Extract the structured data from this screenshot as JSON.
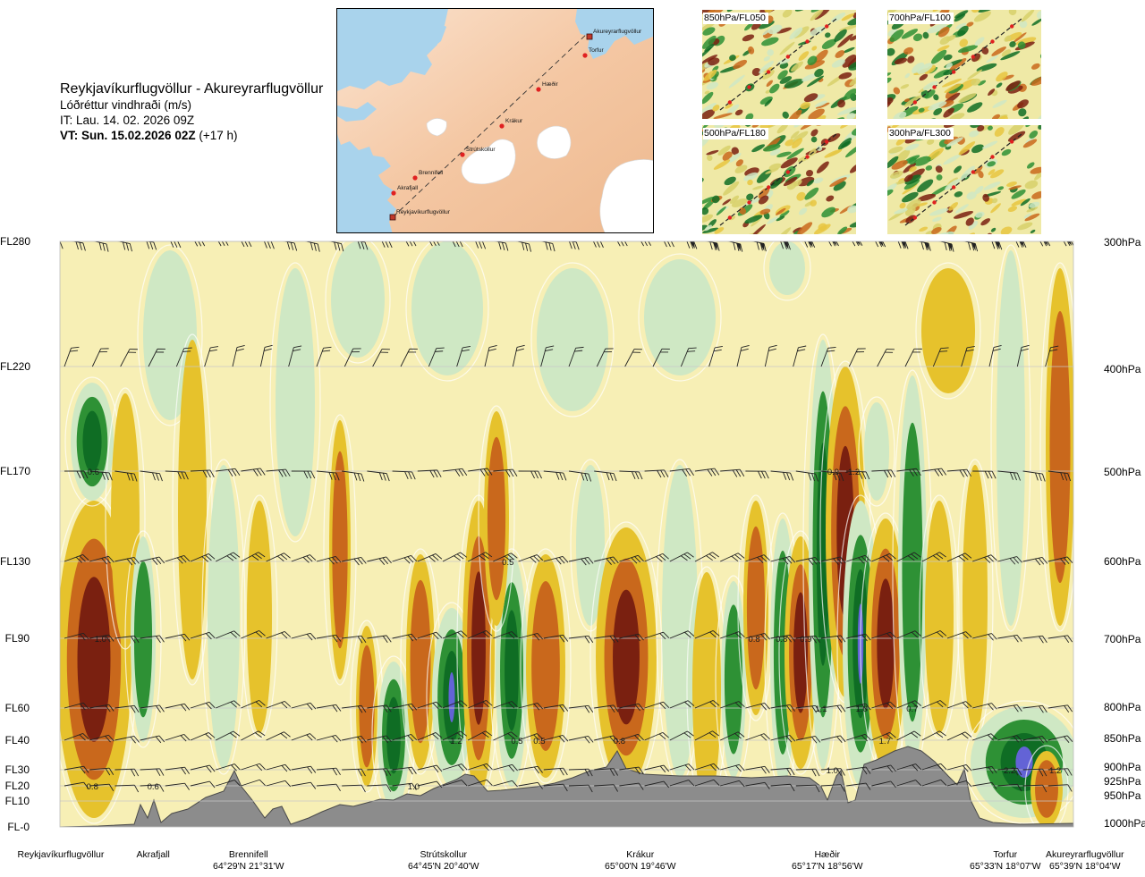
{
  "header": {
    "route": "Reykjavíkurflugvöllur - Akureyrarflugvöllur",
    "subtitle": "Lóðréttur vindhraði (m/s)",
    "issue_time": "IT: Lau. 14. 02. 2026 09Z",
    "valid_time_bold": "VT: Sun. 15.02.2026 02Z",
    "valid_time_suffix": " (+17 h)"
  },
  "route_map": {
    "waypoints": [
      "Akureyrarflugvöllur",
      "Torfur",
      "Hæðir",
      "Krákur",
      "Strútskollur",
      "Brennifell",
      "Akrafjall",
      "Reykjavíkurflugvöllur"
    ]
  },
  "insets": [
    {
      "label": "850hPa/FL050"
    },
    {
      "label": "700hPa/FL100"
    },
    {
      "label": "500hPa/FL180"
    },
    {
      "label": "300hPa/FL300"
    }
  ],
  "colors": {
    "strong_up": "#7a2010",
    "up": "#c9681c",
    "weak_up": "#e6c22c",
    "neutral": "#f7efb5",
    "weak_down": "#cfe8c4",
    "down": "#2e9135",
    "strong_down": "#0f6d24",
    "very_strong_down": "#6363d6",
    "terrain": "#8c8c8c",
    "water": "#a9d3ec",
    "land": "#f4c7a3",
    "ice": "#ffffff"
  },
  "chart_data": {
    "type": "heatmap",
    "title": "Lóðréttur vindhraði (m/s)",
    "flight_levels": [
      {
        "fl": "FL280",
        "hpa": "300hPa"
      },
      {
        "fl": "FL220",
        "hpa": "400hPa"
      },
      {
        "fl": "FL170",
        "hpa": "500hPa"
      },
      {
        "fl": "FL130",
        "hpa": "600hPa"
      },
      {
        "fl": "FL90",
        "hpa": "700hPa"
      },
      {
        "fl": "FL60",
        "hpa": "800hPa"
      },
      {
        "fl": "FL40",
        "hpa": "850hPa"
      },
      {
        "fl": "FL30",
        "hpa": "900hPa"
      },
      {
        "fl": "FL20",
        "hpa": "925hPa"
      },
      {
        "fl": "FL10",
        "hpa": "950hPa"
      },
      {
        "fl": "FL-0",
        "hpa": "1000hPa"
      }
    ],
    "stations": [
      {
        "name": "Reykjavíkurflugvöllur",
        "coord": ""
      },
      {
        "name": "Akrafjall",
        "coord": ""
      },
      {
        "name": "Brennifell",
        "coord": "64°29'N 21°31'W"
      },
      {
        "name": "Strútskollur",
        "coord": "64°45'N 20°40'W"
      },
      {
        "name": "Krákur",
        "coord": "65°00'N 19°46'W"
      },
      {
        "name": "Hæðir",
        "coord": "65°17'N 18°56'W"
      },
      {
        "name": "Torfur",
        "coord": "65°33'N 18°07'W"
      },
      {
        "name": "Akureyrarflugvöllur",
        "coord": "65°39'N 18°04'W"
      }
    ],
    "extrema_labels": [
      {
        "value": "0.6",
        "x": 0.033,
        "fl": 170
      },
      {
        "value": "1.0",
        "x": 0.04,
        "fl": 90
      },
      {
        "value": "0.8",
        "x": 0.032,
        "fl": 20
      },
      {
        "value": "0.6",
        "x": 0.092,
        "fl": 20
      },
      {
        "value": "1.0",
        "x": 0.349,
        "fl": 20
      },
      {
        "value": "1.2",
        "x": 0.391,
        "fl": 40
      },
      {
        "value": "0.5",
        "x": 0.442,
        "fl": 130
      },
      {
        "value": "0.5",
        "x": 0.451,
        "fl": 40
      },
      {
        "value": "0.5",
        "x": 0.473,
        "fl": 40
      },
      {
        "value": "0.8",
        "x": 0.552,
        "fl": 40
      },
      {
        "value": "0.8",
        "x": 0.685,
        "fl": 90
      },
      {
        "value": "0.8",
        "x": 0.712,
        "fl": 90
      },
      {
        "value": "0.9",
        "x": 0.736,
        "fl": 90
      },
      {
        "value": "0.9",
        "x": 0.763,
        "fl": 170
      },
      {
        "value": "-1.2",
        "x": 0.782,
        "fl": 170
      },
      {
        "value": "1.1",
        "x": 0.751,
        "fl": 60
      },
      {
        "value": "1.0",
        "x": 0.791,
        "fl": 60
      },
      {
        "value": "1.7",
        "x": 0.814,
        "fl": 40
      },
      {
        "value": "0.7",
        "x": 0.841,
        "fl": 60
      },
      {
        "value": "1.0",
        "x": 0.762,
        "fl": 30
      },
      {
        "value": "2.2",
        "x": 0.937,
        "fl": 30
      },
      {
        "value": "1.2",
        "x": 0.982,
        "fl": 30
      }
    ]
  }
}
